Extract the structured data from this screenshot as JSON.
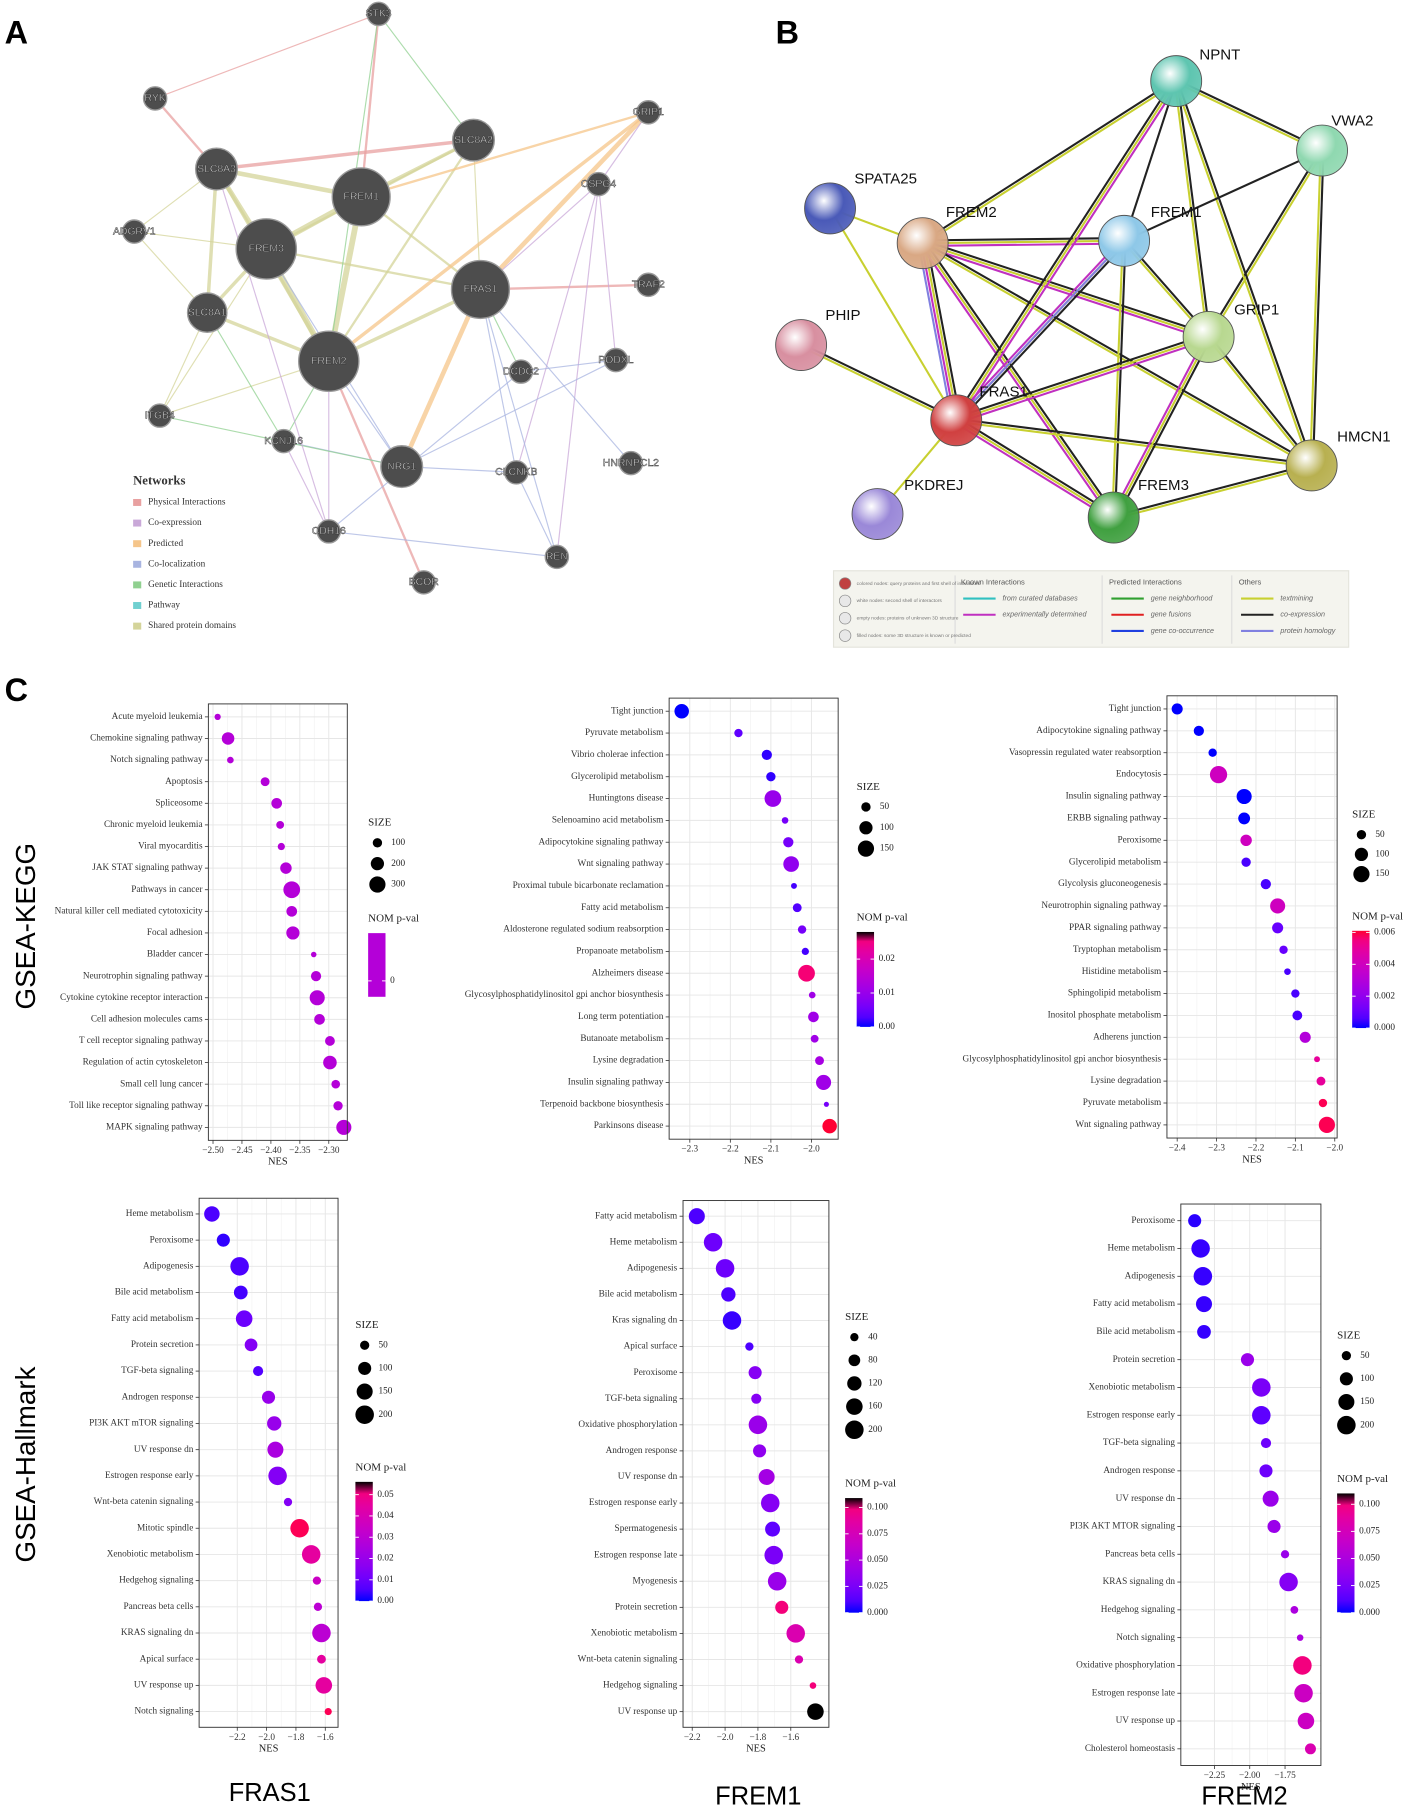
{
  "panels": [
    "A",
    "B",
    "C"
  ],
  "row_labels": [
    "GSEA-KEGG",
    "GSEA-Hallmark"
  ],
  "column_labels": [
    "FRAS1",
    "FREM1",
    "FREM2"
  ],
  "network_a": {
    "nodes": [
      "STK3",
      "RYK",
      "GRIP1",
      "SLC8A2",
      "SLC8A3",
      "FREM1",
      "CSPG4",
      "ADGRV1",
      "FREM3",
      "FRAS1",
      "TRAF2",
      "SLC8A1",
      "FREM2",
      "PODXL",
      "DCDC2",
      "ITGB4",
      "KCNJ16",
      "NRG1",
      "CLCNKB",
      "HNRNPCL2",
      "CDH16",
      "REN",
      "BCOR"
    ],
    "legend_title": "Networks",
    "legend": [
      {
        "label": "Physical Interactions",
        "color": "#e8a0a0"
      },
      {
        "label": "Co-expression",
        "color": "#c9a8d8"
      },
      {
        "label": "Predicted",
        "color": "#f5c58a"
      },
      {
        "label": "Co-localization",
        "color": "#a8b4e0"
      },
      {
        "label": "Genetic Interactions",
        "color": "#90d090"
      },
      {
        "label": "Pathway",
        "color": "#70d0d0"
      },
      {
        "label": "Shared protein domains",
        "color": "#d4d49a"
      }
    ]
  },
  "network_b": {
    "nodes": [
      {
        "label": "NPNT",
        "color": "#5ec5b0"
      },
      {
        "label": "VWA2",
        "color": "#8fd8b0"
      },
      {
        "label": "SPATA25",
        "color": "#4a5ab8"
      },
      {
        "label": "FREM2",
        "color": "#d9a884"
      },
      {
        "label": "FREM1",
        "color": "#8ec8e8"
      },
      {
        "label": "PHIP",
        "color": "#d88fa0"
      },
      {
        "label": "GRIP1",
        "color": "#b8d890"
      },
      {
        "label": "FRAS1",
        "color": "#d04040"
      },
      {
        "label": "HMCN1",
        "color": "#b8b050"
      },
      {
        "label": "PKDREJ",
        "color": "#9a88d8"
      },
      {
        "label": "FREM3",
        "color": "#40a040"
      }
    ],
    "node_key": [
      "colored nodes: query proteins and first shell of interactors",
      "white nodes: second shell of interactors",
      "empty nodes: proteins of unknown 3D structure",
      "filled nodes: some 3D structure is known or predicted"
    ],
    "legend": [
      {
        "title": "Known Interactions",
        "items": [
          {
            "label": "from curated databases",
            "color": "#30c0c0"
          },
          {
            "label": "experimentally determined",
            "color": "#c030c0"
          }
        ]
      },
      {
        "title": "Predicted Interactions",
        "items": [
          {
            "label": "gene neighborhood",
            "color": "#30a030"
          },
          {
            "label": "gene fusions",
            "color": "#e02020"
          },
          {
            "label": "gene co-occurrence",
            "color": "#2040e0"
          }
        ]
      },
      {
        "title": "Others",
        "items": [
          {
            "label": "textmining",
            "color": "#c8d030"
          },
          {
            "label": "co-expression",
            "color": "#222222"
          },
          {
            "label": "protein homology",
            "color": "#8080e0"
          }
        ]
      }
    ]
  },
  "chart_data": [
    {
      "type": "dot",
      "xlabel": "NES",
      "size_title": "SIZE",
      "color_title": "NOM p-val",
      "color_low": "#0000ff",
      "color_high": "#ff0033",
      "categories": [
        "Acute myeloid leukemia",
        "Chemokine signaling pathway",
        "Notch signaling pathway",
        "Apoptosis",
        "Spliceosome",
        "Chronic myeloid leukemia",
        "Viral myocarditis",
        "JAK STAT signaling pathway",
        "Pathways in cancer",
        "Natural killer cell mediated cytotoxicity",
        "Focal adhesion",
        "Bladder cancer",
        "Neurotrophin signaling pathway",
        "Cytokine cytokine receptor interaction",
        "Cell adhesion molecules cams",
        "T cell receptor signaling pathway",
        "Regulation of actin cytoskeleton",
        "Small cell lung cancer",
        "Toll like receptor signaling pathway",
        "MAPK signaling pathway"
      ],
      "values": [
        -2.492,
        -2.474,
        -2.47,
        -2.41,
        -2.39,
        -2.384,
        -2.382,
        -2.374,
        -2.364,
        -2.364,
        -2.362,
        -2.326,
        -2.322,
        -2.32,
        -2.316,
        -2.298,
        -2.298,
        -2.288,
        -2.284,
        -2.274
      ],
      "sizes": [
        45,
        180,
        50,
        90,
        130,
        70,
        60,
        150,
        320,
        130,
        200,
        35,
        120,
        260,
        130,
        110,
        210,
        85,
        100,
        260
      ],
      "pvalues": [
        0,
        0,
        0,
        0,
        0,
        0,
        0,
        0,
        0,
        0,
        0,
        0,
        0,
        0,
        0,
        0,
        0,
        0,
        0,
        0
      ],
      "xlim": [
        -2.508,
        -2.268
      ],
      "xticks": [
        {
          "value": -2.5,
          "label": "−2.50"
        },
        {
          "value": -2.45,
          "label": "−2.45"
        },
        {
          "value": -2.4,
          "label": "−2.40"
        },
        {
          "value": -2.35,
          "label": "−2.35"
        },
        {
          "value": -2.3,
          "label": "−2.30"
        }
      ],
      "size_ticks": [
        100,
        200,
        300
      ],
      "plim": [
        0,
        0
      ],
      "pticks": [
        0
      ]
    },
    {
      "type": "dot",
      "xlabel": "NES",
      "size_title": "SIZE",
      "color_title": "NOM p-val",
      "color_low": "#0000ff",
      "color_high": "#ff0033",
      "categories": [
        "Tight junction",
        "Pyruvate metabolism",
        "Vibrio cholerae infection",
        "Glycerolipid metabolism",
        "Huntingtons disease",
        "Selenoamino acid metabolism",
        "Adipocytokine signaling pathway",
        "Wnt signaling pathway",
        "Proximal tubule bicarbonate reclamation",
        "Fatty acid metabolism",
        "Aldosterone regulated sodium reabsorption",
        "Propanoate metabolism",
        "Alzheimers disease",
        "Glycosylphosphatidylinositol gpi anchor biosynthesis",
        "Long term potentiation",
        "Butanoate metabolism",
        "Lysine degradation",
        "Insulin signaling pathway",
        "Terpenoid backbone biosynthesis",
        "Parkinsons disease"
      ],
      "values": [
        -2.32,
        -2.18,
        -2.11,
        -2.1,
        -2.095,
        -2.065,
        -2.057,
        -2.05,
        -2.043,
        -2.035,
        -2.023,
        -2.015,
        -2.012,
        -1.998,
        -1.995,
        -1.992,
        -1.98,
        -1.97,
        -1.963,
        -1.955
      ],
      "sizes": [
        120,
        40,
        60,
        50,
        160,
        25,
        60,
        140,
        20,
        45,
        40,
        30,
        160,
        25,
        65,
        35,
        45,
        130,
        15,
        120
      ],
      "pvalues": [
        0,
        0.004,
        0.001,
        0.001,
        0.01,
        0.006,
        0.006,
        0.009,
        0.002,
        0.003,
        0.006,
        0.002,
        0.026,
        0.011,
        0.011,
        0.011,
        0.012,
        0.011,
        0.006,
        0.028
      ],
      "xlim": [
        -2.351,
        -1.934
      ],
      "xticks": [
        {
          "value": -2.3,
          "label": "−2.3"
        },
        {
          "value": -2.2,
          "label": "−2.2"
        },
        {
          "value": -2.1,
          "label": "−2.1"
        },
        {
          "value": -2.0,
          "label": "−2.0"
        }
      ],
      "size_ticks": [
        50,
        100,
        150
      ],
      "plim": [
        0,
        0.028
      ],
      "pticks": [
        {
          "value": 0,
          "label": "0.00"
        },
        {
          "value": 0.01,
          "label": "0.01"
        },
        {
          "value": 0.02,
          "label": "0.02"
        }
      ]
    },
    {
      "type": "dot",
      "xlabel": "NES",
      "size_title": "SIZE",
      "color_title": "NOM p-val",
      "color_low": "#0000ff",
      "color_high": "#ff0033",
      "categories": [
        "Tight junction",
        "Adipocytokine signaling pathway",
        "Vasopressin regulated water reabsorption",
        "Endocytosis",
        "Insulin signaling pathway",
        "ERBB signaling pathway",
        "Peroxisome",
        "Glycerolipid metabolism",
        "Glycolysis gluconeogenesis",
        "Neurotrophin signaling pathway",
        "PPAR signaling pathway",
        "Tryptophan metabolism",
        "Histidine metabolism",
        "Sphingolipid metabolism",
        "Inositol phosphate metabolism",
        "Adherens junction",
        "Glycosylphosphatidylinositol gpi anchor biosynthesis",
        "Lysine degradation",
        "Pyruvate metabolism",
        "Wnt signaling pathway"
      ],
      "values": [
        -2.4,
        -2.345,
        -2.31,
        -2.295,
        -2.23,
        -2.23,
        -2.225,
        -2.225,
        -2.175,
        -2.145,
        -2.145,
        -2.13,
        -2.12,
        -2.1,
        -2.095,
        -2.075,
        -2.045,
        -2.035,
        -2.03,
        -2.02
      ],
      "sizes": [
        70,
        60,
        40,
        170,
        130,
        80,
        75,
        50,
        60,
        130,
        70,
        40,
        25,
        40,
        55,
        70,
        20,
        45,
        40,
        150
      ],
      "pvalues": [
        0,
        0,
        0,
        0.004,
        0,
        0,
        0.004,
        0.0005,
        0.0005,
        0.004,
        0.001,
        0.001,
        0.0005,
        0.0005,
        0.0005,
        0.003,
        0.005,
        0.005,
        0.006,
        0.006
      ],
      "xlim": [
        -2.426,
        -1.994
      ],
      "xticks": [
        {
          "value": -2.4,
          "label": "−2.4"
        },
        {
          "value": -2.3,
          "label": "−2.3"
        },
        {
          "value": -2.2,
          "label": "−2.2"
        },
        {
          "value": -2.1,
          "label": "−2.1"
        },
        {
          "value": -2.0,
          "label": "−2.0"
        }
      ],
      "size_ticks": [
        50,
        100,
        150
      ],
      "plim": [
        0,
        0.0061
      ],
      "pticks": [
        {
          "value": 0,
          "label": "0.000"
        },
        {
          "value": 0.002,
          "label": "0.002"
        },
        {
          "value": 0.004,
          "label": "0.004"
        },
        {
          "value": 0.006,
          "label": "0.006"
        }
      ]
    },
    {
      "type": "dot",
      "xlabel": "NES",
      "size_title": "SIZE",
      "color_title": "NOM p-val",
      "color_low": "#0000ff",
      "color_high": "#ff0033",
      "categories": [
        "Heme metabolism",
        "Peroxisome",
        "Adipogenesis",
        "Bile acid metabolism",
        "Fatty acid metabolism",
        "Protein secretion",
        "TGF-beta signaling",
        "Androgen response",
        "PI3K AKT mTOR signaling",
        "UV response dn",
        "Estrogen response early",
        "Wnt-beta catenin signaling",
        "Mitotic spindle",
        "Xenobiotic metabolism",
        "Hedgehog signaling",
        "Pancreas beta cells",
        "KRAS signaling dn",
        "Apical surface",
        "UV response up",
        "Notch signaling"
      ],
      "values": [
        -2.373,
        -2.295,
        -2.184,
        -2.176,
        -2.153,
        -2.106,
        -2.058,
        -1.987,
        -1.948,
        -1.94,
        -1.925,
        -1.854,
        -1.775,
        -1.696,
        -1.657,
        -1.65,
        -1.626,
        -1.626,
        -1.61,
        -1.58
      ],
      "sizes": [
        140,
        100,
        200,
        110,
        160,
        95,
        60,
        100,
        120,
        150,
        200,
        40,
        200,
        200,
        40,
        40,
        200,
        45,
        160,
        30
      ],
      "pvalues": [
        0.005,
        0.002,
        0.005,
        0.004,
        0.01,
        0.015,
        0.006,
        0.02,
        0.02,
        0.025,
        0.015,
        0.015,
        0.055,
        0.045,
        0.035,
        0.03,
        0.03,
        0.045,
        0.045,
        0.055
      ],
      "xlim": [
        -2.46,
        -1.513
      ],
      "xticks": [
        {
          "value": -2.2,
          "label": "−2.2"
        },
        {
          "value": -2.0,
          "label": "−2.0"
        },
        {
          "value": -1.8,
          "label": "−1.8"
        },
        {
          "value": -1.6,
          "label": "−1.6"
        }
      ],
      "size_ticks": [
        50,
        100,
        150,
        200
      ],
      "plim": [
        0,
        0.056
      ],
      "pticks": [
        {
          "value": 0,
          "label": "0.00"
        },
        {
          "value": 0.01,
          "label": "0.01"
        },
        {
          "value": 0.02,
          "label": "0.02"
        },
        {
          "value": 0.03,
          "label": "0.03"
        },
        {
          "value": 0.04,
          "label": "0.04"
        },
        {
          "value": 0.05,
          "label": "0.05"
        }
      ]
    },
    {
      "type": "dot",
      "xlabel": "NES",
      "size_title": "SIZE",
      "color_title": "NOM p-val",
      "color_low": "#0000ff",
      "color_high": "#ff0033",
      "categories": [
        "Fatty acid metabolism",
        "Heme metabolism",
        "Adipogenesis",
        "Bile acid metabolism",
        "Kras signaling dn",
        "Apical surface",
        "Peroxisome",
        "TGF-beta signaling",
        "Oxidative phosphorylation",
        "Androgen response",
        "UV response dn",
        "Estrogen response early",
        "Spermatogenesis",
        "Estrogen response late",
        "Myogenesis",
        "Protein secretion",
        "Xenobiotic metabolism",
        "Wnt-beta catenin signaling",
        "Hedgehog signaling",
        "UV response up"
      ],
      "values": [
        -2.172,
        -2.073,
        -2.0,
        -1.98,
        -1.958,
        -1.852,
        -1.817,
        -1.81,
        -1.8,
        -1.79,
        -1.747,
        -1.725,
        -1.711,
        -1.704,
        -1.683,
        -1.655,
        -1.57,
        -1.55,
        -1.465,
        -1.45
      ],
      "sizes": [
        150,
        200,
        200,
        120,
        200,
        40,
        100,
        60,
        200,
        100,
        150,
        200,
        130,
        200,
        200,
        100,
        200,
        40,
        25,
        160
      ],
      "pvalues": [
        0.01,
        0.02,
        0.02,
        0.01,
        0.005,
        0.01,
        0.03,
        0.03,
        0.04,
        0.035,
        0.045,
        0.03,
        0.015,
        0.025,
        0.04,
        0.1,
        0.08,
        0.08,
        0.1,
        0.11
      ],
      "xlim": [
        -2.256,
        -1.368
      ],
      "xticks": [
        {
          "value": -2.2,
          "label": "−2.2"
        },
        {
          "value": -2.0,
          "label": "−2.0"
        },
        {
          "value": -1.8,
          "label": "−1.8"
        },
        {
          "value": -1.6,
          "label": "−1.6"
        }
      ],
      "size_ticks": [
        40,
        80,
        120,
        160,
        200
      ],
      "plim": [
        0,
        0.109
      ],
      "pticks": [
        {
          "value": 0,
          "label": "0.000"
        },
        {
          "value": 0.025,
          "label": "0.025"
        },
        {
          "value": 0.05,
          "label": "0.050"
        },
        {
          "value": 0.075,
          "label": "0.075"
        },
        {
          "value": 0.1,
          "label": "0.100"
        }
      ]
    },
    {
      "type": "dot",
      "xlabel": "NES",
      "size_title": "SIZE",
      "color_title": "NOM p-val",
      "color_low": "#0000ff",
      "color_high": "#ff0033",
      "categories": [
        "Peroxisome",
        "Heme metabolism",
        "Adipogenesis",
        "Fatty acid metabolism",
        "Bile acid metabolism",
        "Protein secretion",
        "Xenobiotic metabolism",
        "Estrogen response early",
        "TGF-beta signaling",
        "Androgen response",
        "UV response dn",
        "PI3K AKT MTOR signaling",
        "Pancreas beta cells",
        "KRAS signaling dn",
        "Hedgehog signaling",
        "Notch signaling",
        "Oxidative phosphorylation",
        "Estrogen response late",
        "UV response up",
        "Cholesterol homeostasis"
      ],
      "values": [
        -2.39,
        -2.348,
        -2.332,
        -2.324,
        -2.324,
        -2.016,
        -1.918,
        -1.918,
        -1.885,
        -1.885,
        -1.852,
        -1.828,
        -1.75,
        -1.725,
        -1.684,
        -1.643,
        -1.627,
        -1.619,
        -1.602,
        -1.57
      ],
      "sizes": [
        100,
        200,
        200,
        150,
        110,
        100,
        200,
        200,
        60,
        100,
        150,
        100,
        40,
        200,
        35,
        25,
        200,
        200,
        160,
        70
      ],
      "pvalues": [
        0.003,
        0.005,
        0.005,
        0.005,
        0.005,
        0.04,
        0.025,
        0.015,
        0.02,
        0.02,
        0.04,
        0.04,
        0.04,
        0.03,
        0.05,
        0.05,
        0.1,
        0.07,
        0.07,
        0.08
      ],
      "xlim": [
        -2.488,
        -1.496
      ],
      "xticks": [
        {
          "value": -2.25,
          "label": "−2.25"
        },
        {
          "value": -2.0,
          "label": "−2.00"
        },
        {
          "value": -1.75,
          "label": "−1.75"
        }
      ],
      "size_ticks": [
        50,
        100,
        150,
        200
      ],
      "plim": [
        0,
        0.11
      ],
      "pticks": [
        {
          "value": 0,
          "label": "0.000"
        },
        {
          "value": 0.025,
          "label": "0.025"
        },
        {
          "value": 0.05,
          "label": "0.050"
        },
        {
          "value": 0.075,
          "label": "0.075"
        },
        {
          "value": 0.1,
          "label": "0.100"
        }
      ]
    }
  ]
}
